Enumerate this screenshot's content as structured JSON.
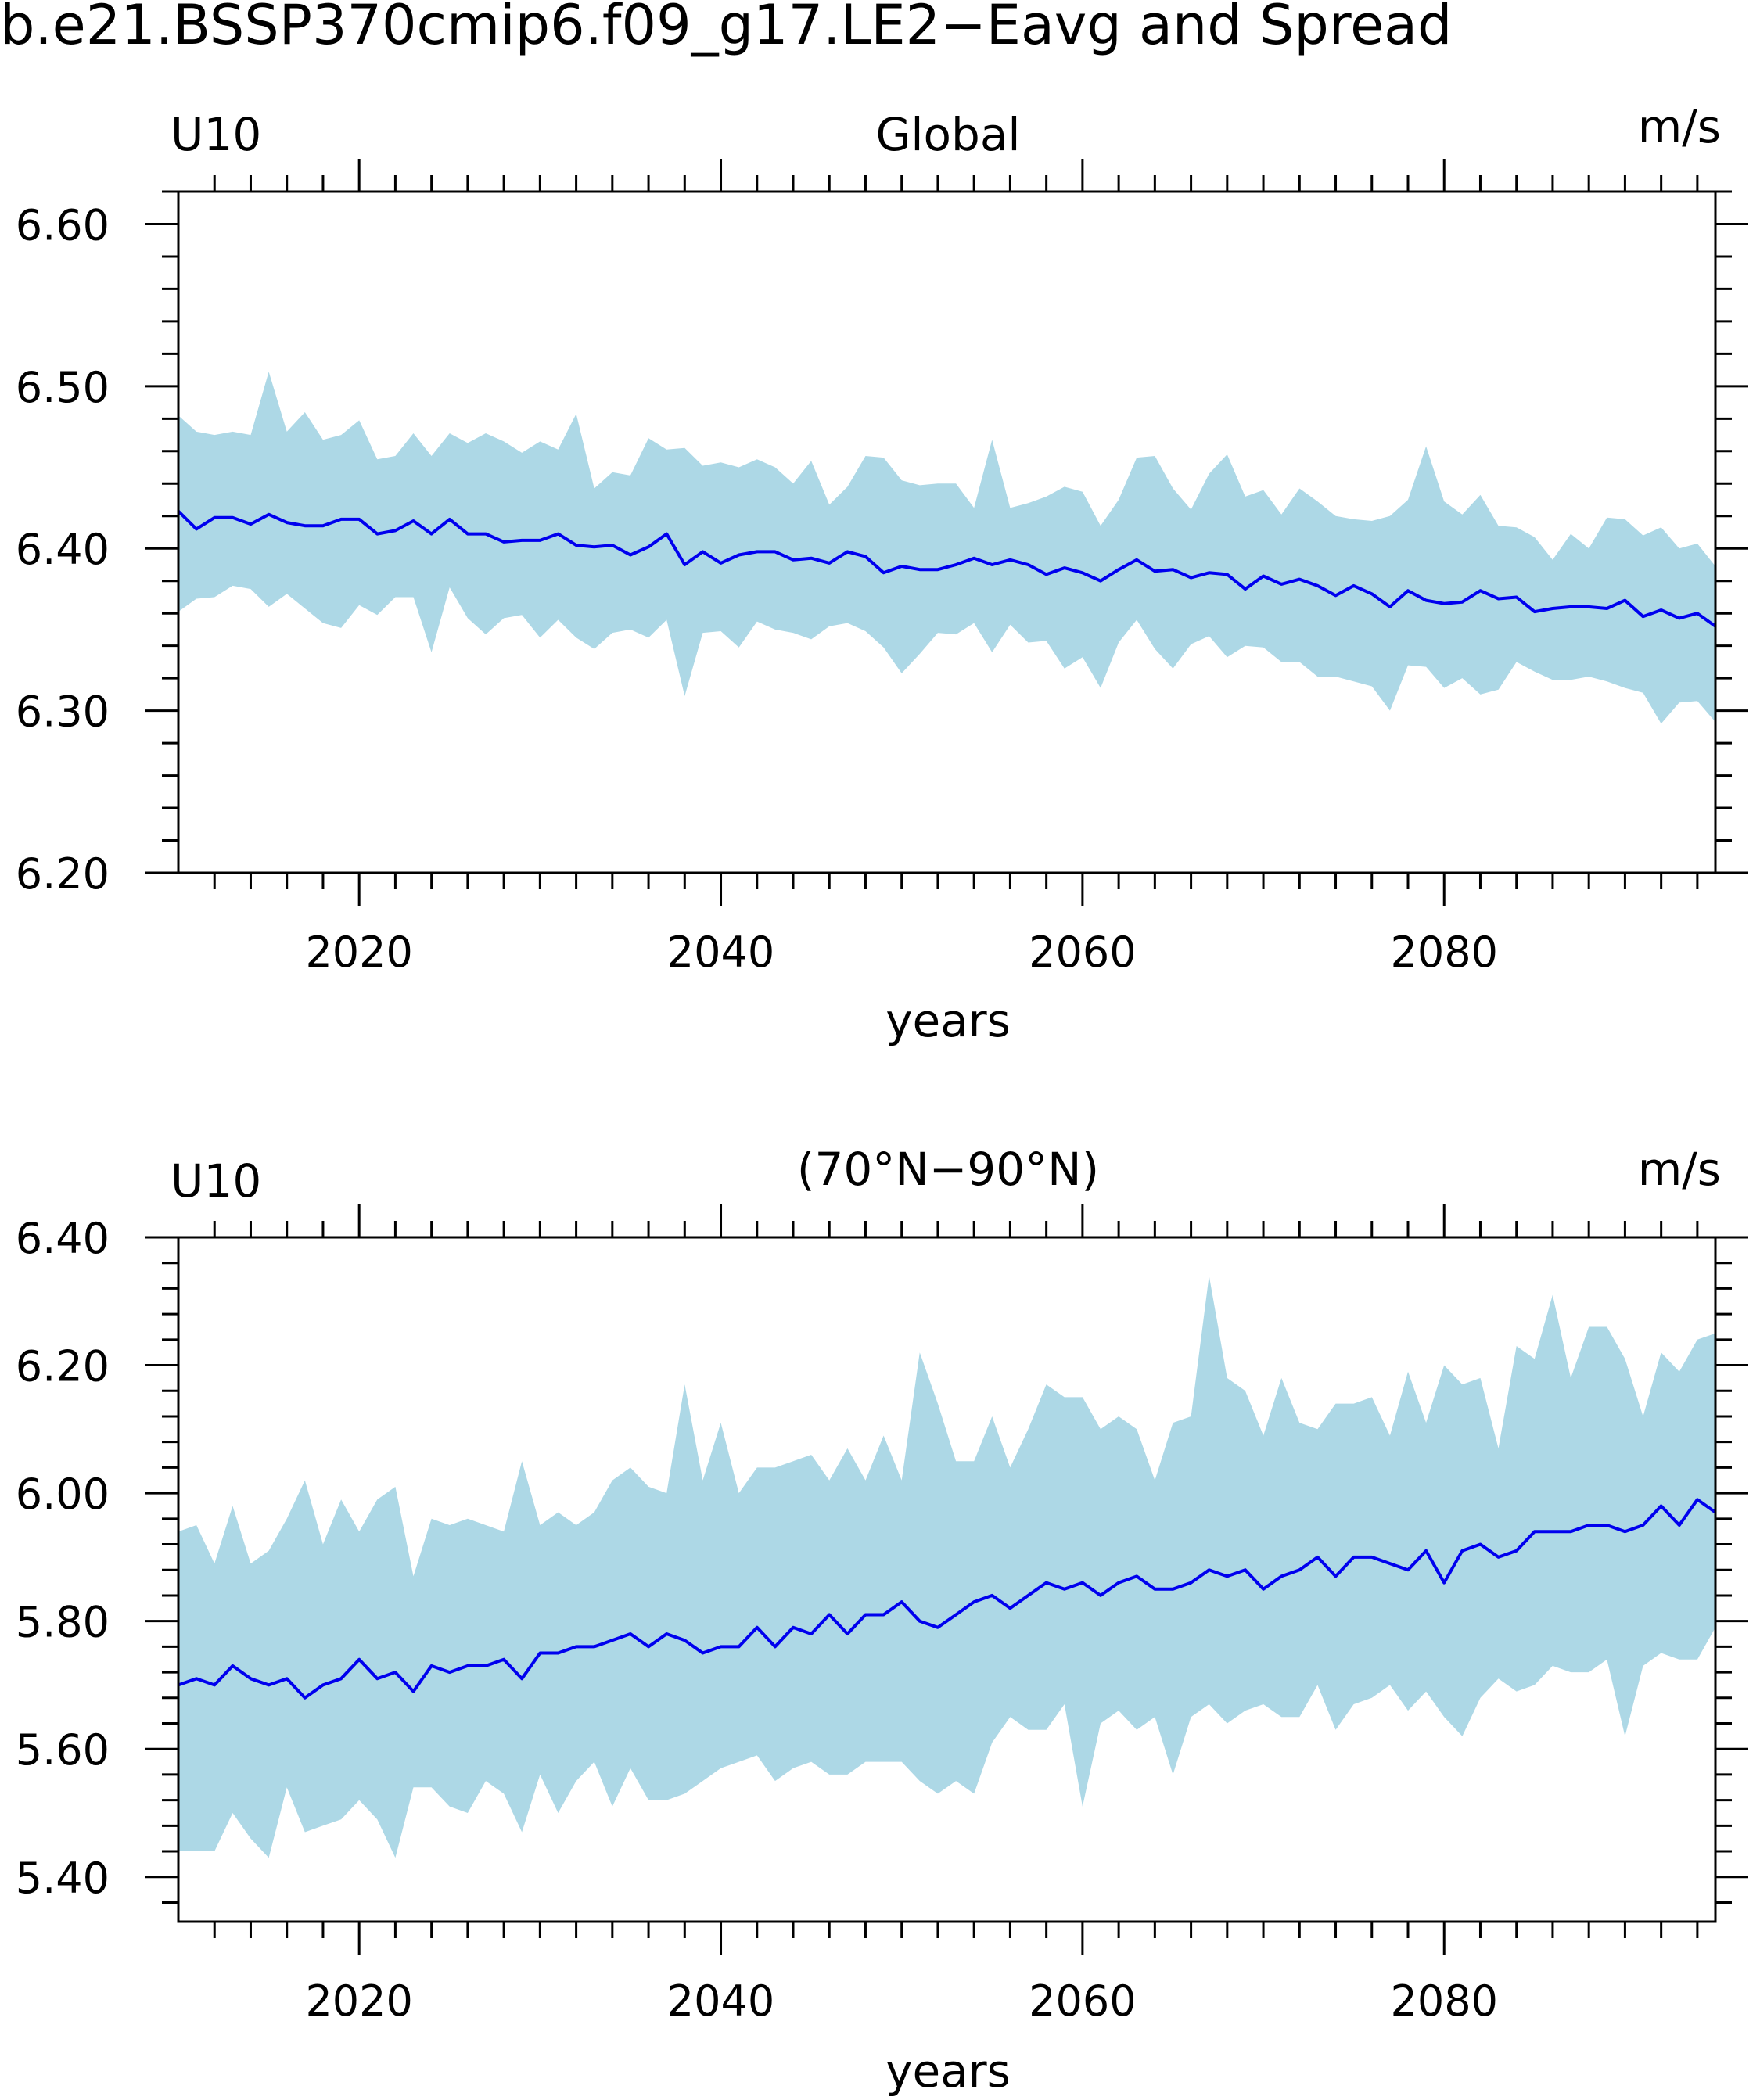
{
  "title": "b.e21.BSSP370cmip6.f09_g17.LE2−Eavg and Spread",
  "colors": {
    "spread": "#add8e6",
    "mean": "#0000ee",
    "axis": "#000000"
  },
  "chart_data": [
    {
      "type": "area",
      "variable": "U10",
      "region": "Global",
      "units": "m/s",
      "xlabel": "years",
      "ylabel": "",
      "xlim": [
        2010,
        2095
      ],
      "ylim": [
        6.2,
        6.62
      ],
      "xticks": [
        2020,
        2040,
        2060,
        2080
      ],
      "xtick_labels": [
        "2020",
        "2040",
        "2060",
        "2080"
      ],
      "yticks": [
        6.2,
        6.3,
        6.4,
        6.5,
        6.6
      ],
      "ytick_labels": [
        "6.20",
        "6.30",
        "6.40",
        "6.50",
        "6.60"
      ],
      "x": [
        2010,
        2011,
        2012,
        2013,
        2014,
        2015,
        2016,
        2017,
        2018,
        2019,
        2020,
        2021,
        2022,
        2023,
        2024,
        2025,
        2026,
        2027,
        2028,
        2029,
        2030,
        2031,
        2032,
        2033,
        2034,
        2035,
        2036,
        2037,
        2038,
        2039,
        2040,
        2041,
        2042,
        2043,
        2044,
        2045,
        2046,
        2047,
        2048,
        2049,
        2050,
        2051,
        2052,
        2053,
        2054,
        2055,
        2056,
        2057,
        2058,
        2059,
        2060,
        2061,
        2062,
        2063,
        2064,
        2065,
        2066,
        2067,
        2068,
        2069,
        2070,
        2071,
        2072,
        2073,
        2074,
        2075,
        2076,
        2077,
        2078,
        2079,
        2080,
        2081,
        2082,
        2083,
        2084,
        2085,
        2086,
        2087,
        2088,
        2089,
        2090,
        2091,
        2092,
        2093,
        2094,
        2095
      ],
      "series": [
        {
          "name": "ensemble mean",
          "values": [
            6.423,
            6.412,
            6.419,
            6.419,
            6.415,
            6.421,
            6.416,
            6.414,
            6.414,
            6.418,
            6.418,
            6.409,
            6.411,
            6.417,
            6.409,
            6.418,
            6.409,
            6.409,
            6.404,
            6.405,
            6.405,
            6.409,
            6.402,
            6.401,
            6.402,
            6.396,
            6.401,
            6.409,
            6.39,
            6.398,
            6.391,
            6.396,
            6.398,
            6.398,
            6.393,
            6.394,
            6.391,
            6.398,
            6.395,
            6.385,
            6.389,
            6.387,
            6.387,
            6.39,
            6.394,
            6.39,
            6.393,
            6.39,
            6.384,
            6.388,
            6.385,
            6.38,
            6.387,
            6.393,
            6.386,
            6.387,
            6.382,
            6.385,
            6.384,
            6.375,
            6.383,
            6.378,
            6.381,
            6.377,
            6.371,
            6.377,
            6.372,
            6.364,
            6.374,
            6.368,
            6.366,
            6.367,
            6.374,
            6.369,
            6.37,
            6.361,
            6.363,
            6.364,
            6.364,
            6.363,
            6.368,
            6.358,
            6.362,
            6.357,
            6.36,
            6.352
          ]
        },
        {
          "name": "spread max",
          "values": [
            6.482,
            6.472,
            6.47,
            6.472,
            6.47,
            6.509,
            6.472,
            6.484,
            6.467,
            6.47,
            6.479,
            6.455,
            6.457,
            6.471,
            6.457,
            6.471,
            6.465,
            6.471,
            6.466,
            6.459,
            6.466,
            6.461,
            6.483,
            6.437,
            6.447,
            6.445,
            6.468,
            6.461,
            6.462,
            6.451,
            6.453,
            6.45,
            6.455,
            6.45,
            6.44,
            6.454,
            6.427,
            6.438,
            6.457,
            6.456,
            6.442,
            6.439,
            6.44,
            6.44,
            6.425,
            6.467,
            6.425,
            6.428,
            6.432,
            6.438,
            6.435,
            6.414,
            6.43,
            6.456,
            6.457,
            6.437,
            6.424,
            6.446,
            6.458,
            6.432,
            6.436,
            6.421,
            6.437,
            6.429,
            6.42,
            6.418,
            6.417,
            6.42,
            6.43,
            6.463,
            6.429,
            6.421,
            6.433,
            6.414,
            6.413,
            6.407,
            6.393,
            6.409,
            6.4,
            6.419,
            6.418,
            6.408,
            6.413,
            6.4,
            6.403,
            6.389
          ]
        },
        {
          "name": "spread min",
          "values": [
            6.361,
            6.369,
            6.37,
            6.377,
            6.375,
            6.364,
            6.372,
            6.363,
            6.354,
            6.351,
            6.365,
            6.359,
            6.37,
            6.37,
            6.336,
            6.376,
            6.357,
            6.347,
            6.357,
            6.359,
            6.345,
            6.356,
            6.345,
            6.338,
            6.348,
            6.35,
            6.345,
            6.356,
            6.309,
            6.348,
            6.349,
            6.339,
            6.355,
            6.35,
            6.348,
            6.344,
            6.352,
            6.354,
            6.349,
            6.339,
            6.323,
            6.335,
            6.348,
            6.347,
            6.354,
            6.336,
            6.353,
            6.342,
            6.343,
            6.326,
            6.333,
            6.314,
            6.342,
            6.356,
            6.338,
            6.326,
            6.341,
            6.346,
            6.333,
            6.34,
            6.339,
            6.33,
            6.33,
            6.321,
            6.321,
            6.318,
            6.315,
            6.3,
            6.328,
            6.327,
            6.314,
            6.32,
            6.31,
            6.313,
            6.33,
            6.324,
            6.319,
            6.319,
            6.321,
            6.318,
            6.314,
            6.311,
            6.292,
            6.305,
            6.306,
            6.293
          ]
        }
      ]
    },
    {
      "type": "area",
      "variable": "U10",
      "region": "(70°N−90°N)",
      "units": "m/s",
      "xlabel": "years",
      "ylabel": "",
      "xlim": [
        2010,
        2095
      ],
      "ylim": [
        5.33,
        6.4
      ],
      "xticks": [
        2020,
        2040,
        2060,
        2080
      ],
      "xtick_labels": [
        "2020",
        "2040",
        "2060",
        "2080"
      ],
      "yticks": [
        5.4,
        5.6,
        5.8,
        6.0,
        6.2,
        6.4
      ],
      "ytick_labels": [
        "5.40",
        "5.60",
        "5.80",
        "6.00",
        "6.20",
        "6.40"
      ],
      "x": [
        2010,
        2011,
        2012,
        2013,
        2014,
        2015,
        2016,
        2017,
        2018,
        2019,
        2020,
        2021,
        2022,
        2023,
        2024,
        2025,
        2026,
        2027,
        2028,
        2029,
        2030,
        2031,
        2032,
        2033,
        2034,
        2035,
        2036,
        2037,
        2038,
        2039,
        2040,
        2041,
        2042,
        2043,
        2044,
        2045,
        2046,
        2047,
        2048,
        2049,
        2050,
        2051,
        2052,
        2053,
        2054,
        2055,
        2056,
        2057,
        2058,
        2059,
        2060,
        2061,
        2062,
        2063,
        2064,
        2065,
        2066,
        2067,
        2068,
        2069,
        2070,
        2071,
        2072,
        2073,
        2074,
        2075,
        2076,
        2077,
        2078,
        2079,
        2080,
        2081,
        2082,
        2083,
        2084,
        2085,
        2086,
        2087,
        2088,
        2089,
        2090,
        2091,
        2092,
        2093,
        2094,
        2095
      ],
      "series": [
        {
          "name": "ensemble mean",
          "values": [
            5.7,
            5.71,
            5.7,
            5.73,
            5.71,
            5.7,
            5.71,
            5.68,
            5.7,
            5.71,
            5.74,
            5.71,
            5.72,
            5.69,
            5.73,
            5.72,
            5.73,
            5.73,
            5.74,
            5.71,
            5.75,
            5.75,
            5.76,
            5.76,
            5.77,
            5.78,
            5.76,
            5.78,
            5.77,
            5.75,
            5.76,
            5.76,
            5.79,
            5.76,
            5.79,
            5.78,
            5.81,
            5.78,
            5.81,
            5.81,
            5.83,
            5.8,
            5.79,
            5.81,
            5.83,
            5.84,
            5.82,
            5.84,
            5.86,
            5.85,
            5.86,
            5.84,
            5.86,
            5.87,
            5.85,
            5.85,
            5.86,
            5.88,
            5.87,
            5.88,
            5.85,
            5.87,
            5.88,
            5.9,
            5.87,
            5.9,
            5.9,
            5.89,
            5.88,
            5.91,
            5.86,
            5.91,
            5.92,
            5.9,
            5.91,
            5.94,
            5.94,
            5.94,
            5.95,
            5.95,
            5.94,
            5.95,
            5.98,
            5.95,
            5.99,
            5.97
          ]
        },
        {
          "name": "spread max",
          "values": [
            5.94,
            5.95,
            5.89,
            5.98,
            5.89,
            5.91,
            5.96,
            6.02,
            5.92,
            5.99,
            5.94,
            5.99,
            6.01,
            5.87,
            5.96,
            5.95,
            5.96,
            5.95,
            5.94,
            6.05,
            5.95,
            5.97,
            5.95,
            5.97,
            6.02,
            6.04,
            6.01,
            6.0,
            6.17,
            6.02,
            6.11,
            6.0,
            6.04,
            6.04,
            6.05,
            6.06,
            6.02,
            6.07,
            6.02,
            6.09,
            6.02,
            6.22,
            6.14,
            6.05,
            6.05,
            6.12,
            6.04,
            6.1,
            6.17,
            6.15,
            6.15,
            6.1,
            6.12,
            6.1,
            6.02,
            6.11,
            6.12,
            6.34,
            6.18,
            6.16,
            6.09,
            6.18,
            6.11,
            6.1,
            6.14,
            6.14,
            6.15,
            6.09,
            6.19,
            6.11,
            6.2,
            6.17,
            6.18,
            6.07,
            6.23,
            6.21,
            6.31,
            6.18,
            6.26,
            6.26,
            6.21,
            6.12,
            6.22,
            6.19,
            6.24,
            6.25
          ]
        },
        {
          "name": "spread min",
          "values": [
            5.44,
            5.44,
            5.44,
            5.5,
            5.46,
            5.43,
            5.54,
            5.47,
            5.48,
            5.49,
            5.52,
            5.49,
            5.43,
            5.54,
            5.54,
            5.51,
            5.5,
            5.55,
            5.53,
            5.47,
            5.56,
            5.5,
            5.55,
            5.58,
            5.51,
            5.57,
            5.52,
            5.52,
            5.53,
            5.55,
            5.57,
            5.58,
            5.59,
            5.55,
            5.57,
            5.58,
            5.56,
            5.56,
            5.58,
            5.58,
            5.58,
            5.55,
            5.53,
            5.55,
            5.53,
            5.61,
            5.65,
            5.63,
            5.63,
            5.67,
            5.51,
            5.64,
            5.66,
            5.63,
            5.65,
            5.56,
            5.65,
            5.67,
            5.64,
            5.66,
            5.67,
            5.65,
            5.65,
            5.7,
            5.63,
            5.67,
            5.68,
            5.7,
            5.66,
            5.69,
            5.65,
            5.62,
            5.68,
            5.71,
            5.69,
            5.7,
            5.73,
            5.72,
            5.72,
            5.74,
            5.62,
            5.73,
            5.75,
            5.74,
            5.74,
            5.79
          ]
        }
      ]
    }
  ]
}
